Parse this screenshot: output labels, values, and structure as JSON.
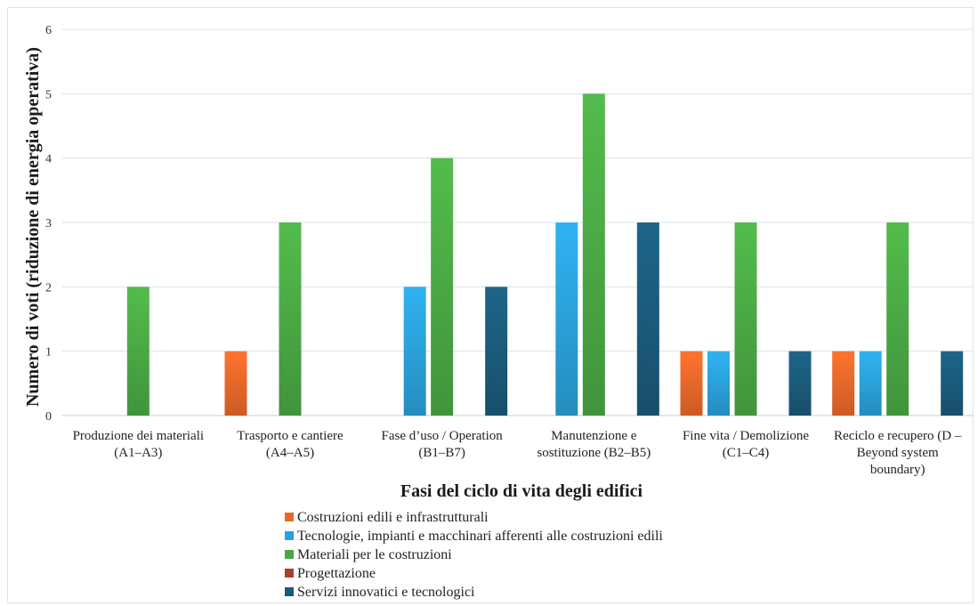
{
  "chart_data": {
    "type": "bar",
    "title": "",
    "xlabel": "Fasi del ciclo di vita degli edifici",
    "ylabel": "Numero di voti (riduzione di energia operativa)",
    "ylim": [
      0,
      6
    ],
    "yticks": [
      0,
      1,
      2,
      3,
      4,
      5,
      6
    ],
    "grid": true,
    "legend_position": "bottom",
    "categories": [
      [
        "Produzione dei materiali",
        "(A1–A3)"
      ],
      [
        "Trasporto e cantiere",
        "(A4–A5)"
      ],
      [
        "Fase d’uso / Operation",
        "(B1–B7)"
      ],
      [
        "Manutenzione e",
        "sostituzione (B2–B5)"
      ],
      [
        "Fine vita / Demolizione",
        "(C1–C4)"
      ],
      [
        "Reciclo e recupero (D –",
        "Beyond system",
        "boundary)"
      ]
    ],
    "series": [
      {
        "name": "Costruzioni edili e infrastrutturali",
        "color": "#e8672a",
        "values": [
          0,
          1,
          0,
          0,
          1,
          1
        ]
      },
      {
        "name": "Tecnologie, impianti e macchinari afferenti alle costruzioni edili",
        "color": "#2aa0d8",
        "values": [
          0,
          0,
          2,
          3,
          1,
          1
        ]
      },
      {
        "name": "Materiali per le costruzioni",
        "color": "#4aa844",
        "values": [
          2,
          3,
          4,
          5,
          3,
          3
        ]
      },
      {
        "name": "Progettazione",
        "color": "#a8402a",
        "values": [
          0,
          0,
          0,
          0,
          0,
          0
        ]
      },
      {
        "name": "Servizi innovatici e tecnologici",
        "color": "#1b5a7a",
        "values": [
          0,
          0,
          2,
          3,
          1,
          1
        ]
      }
    ]
  }
}
